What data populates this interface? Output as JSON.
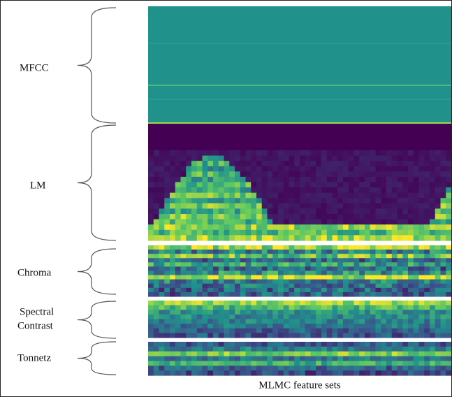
{
  "panels": [
    {
      "label": "MFCC"
    },
    {
      "label": "LM"
    },
    {
      "label": "Chroma"
    },
    {
      "label_lines": [
        "Spectral",
        "Contrast"
      ]
    },
    {
      "label": "Tonnetz"
    }
  ],
  "caption": "MLMC feature sets"
}
